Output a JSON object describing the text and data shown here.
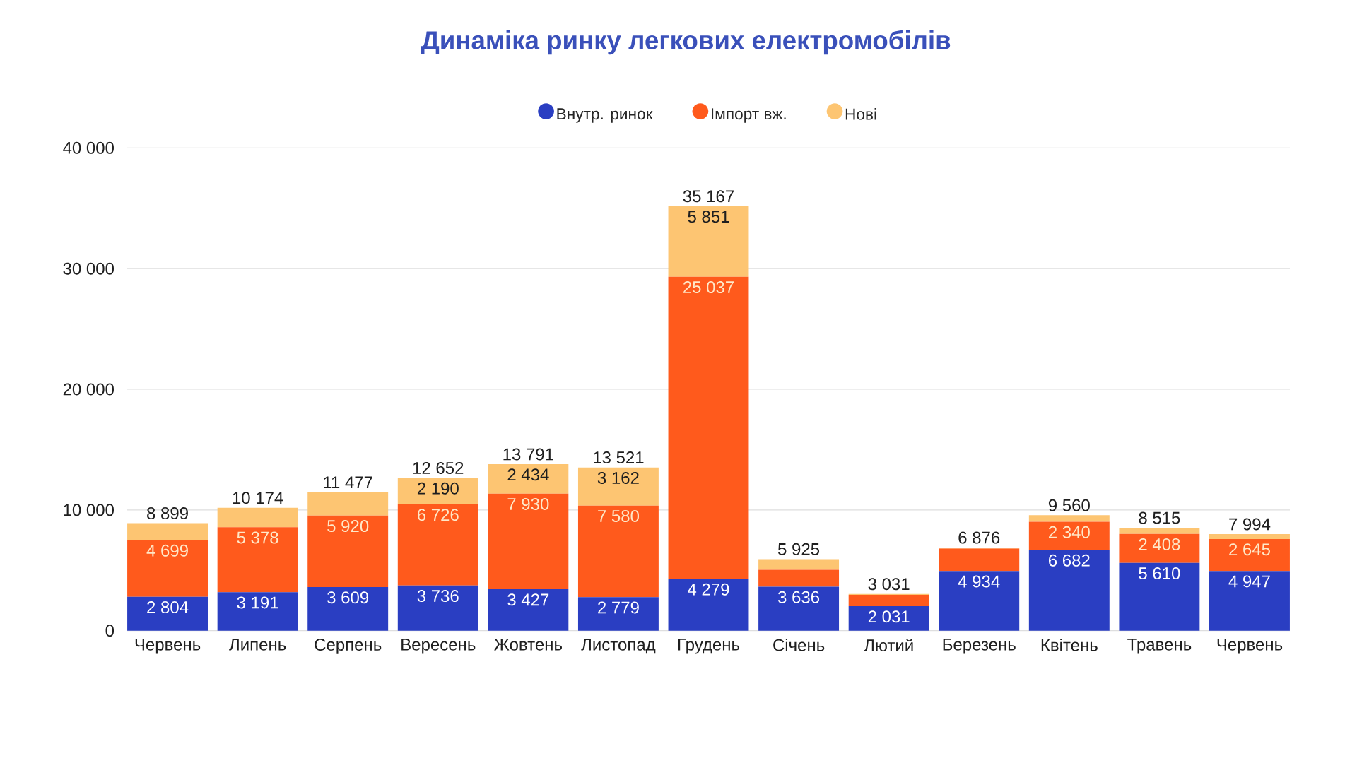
{
  "chart_data": {
    "type": "bar",
    "stacked": true,
    "title": "Динаміка ринку легкових електромобілів",
    "categories": [
      "Червень",
      "Липень",
      "Серпень",
      "Вересень",
      "Жовтень",
      "Листопад",
      "Грудень",
      "Січень",
      "Лютий",
      "Березень",
      "Квітень",
      "Травень",
      "Червень"
    ],
    "series": [
      {
        "name": "Внутр. ринок",
        "color": "#2a3ec2",
        "values": [
          2804,
          3191,
          3609,
          3736,
          3427,
          2779,
          4279,
          3636,
          2031,
          4934,
          6682,
          5610,
          4947
        ],
        "value_labels": [
          "2 804",
          "3 191",
          "3 609",
          "3 736",
          "3 427",
          "2 779",
          "4 279",
          "3 636",
          "2 031",
          "4 934",
          "6 682",
          "5 610",
          "4 947"
        ]
      },
      {
        "name": "Імпорт вж.",
        "color": "#ff5a1c",
        "values": [
          4699,
          5378,
          5920,
          6726,
          7930,
          7580,
          25037,
          1400,
          940,
          1870,
          2340,
          2408,
          2645
        ],
        "value_labels": [
          "4 699",
          "5 378",
          "5 920",
          "6 726",
          "7 930",
          "7 580",
          "25 037",
          null,
          null,
          null,
          "2 340",
          "2 408",
          "2 645"
        ]
      },
      {
        "name": "Нові",
        "color": "#fdc572",
        "values": [
          1396,
          1605,
          1948,
          2190,
          2434,
          3162,
          5851,
          889,
          60,
          72,
          538,
          497,
          402
        ],
        "value_labels": [
          null,
          null,
          null,
          "2 190",
          "2 434",
          "3 162",
          "5 851",
          null,
          null,
          null,
          null,
          null,
          null
        ]
      }
    ],
    "totals": [
      "8 899",
      "10 174",
      "11 477",
      "12 652",
      "13 791",
      "13 521",
      "35 167",
      "5 925",
      "3 031",
      "6 876",
      "9 560",
      "8 515",
      "7 994"
    ],
    "ylim": [
      0,
      40000
    ],
    "yticks": [
      0,
      {
        "value": 10000,
        "label": "10 000"
      },
      {
        "value": 20000,
        "label": "20 000"
      },
      {
        "value": 30000,
        "label": "30 000"
      },
      {
        "value": 40000,
        "label": "40 000"
      }
    ],
    "grid": "y",
    "legend": "top"
  }
}
